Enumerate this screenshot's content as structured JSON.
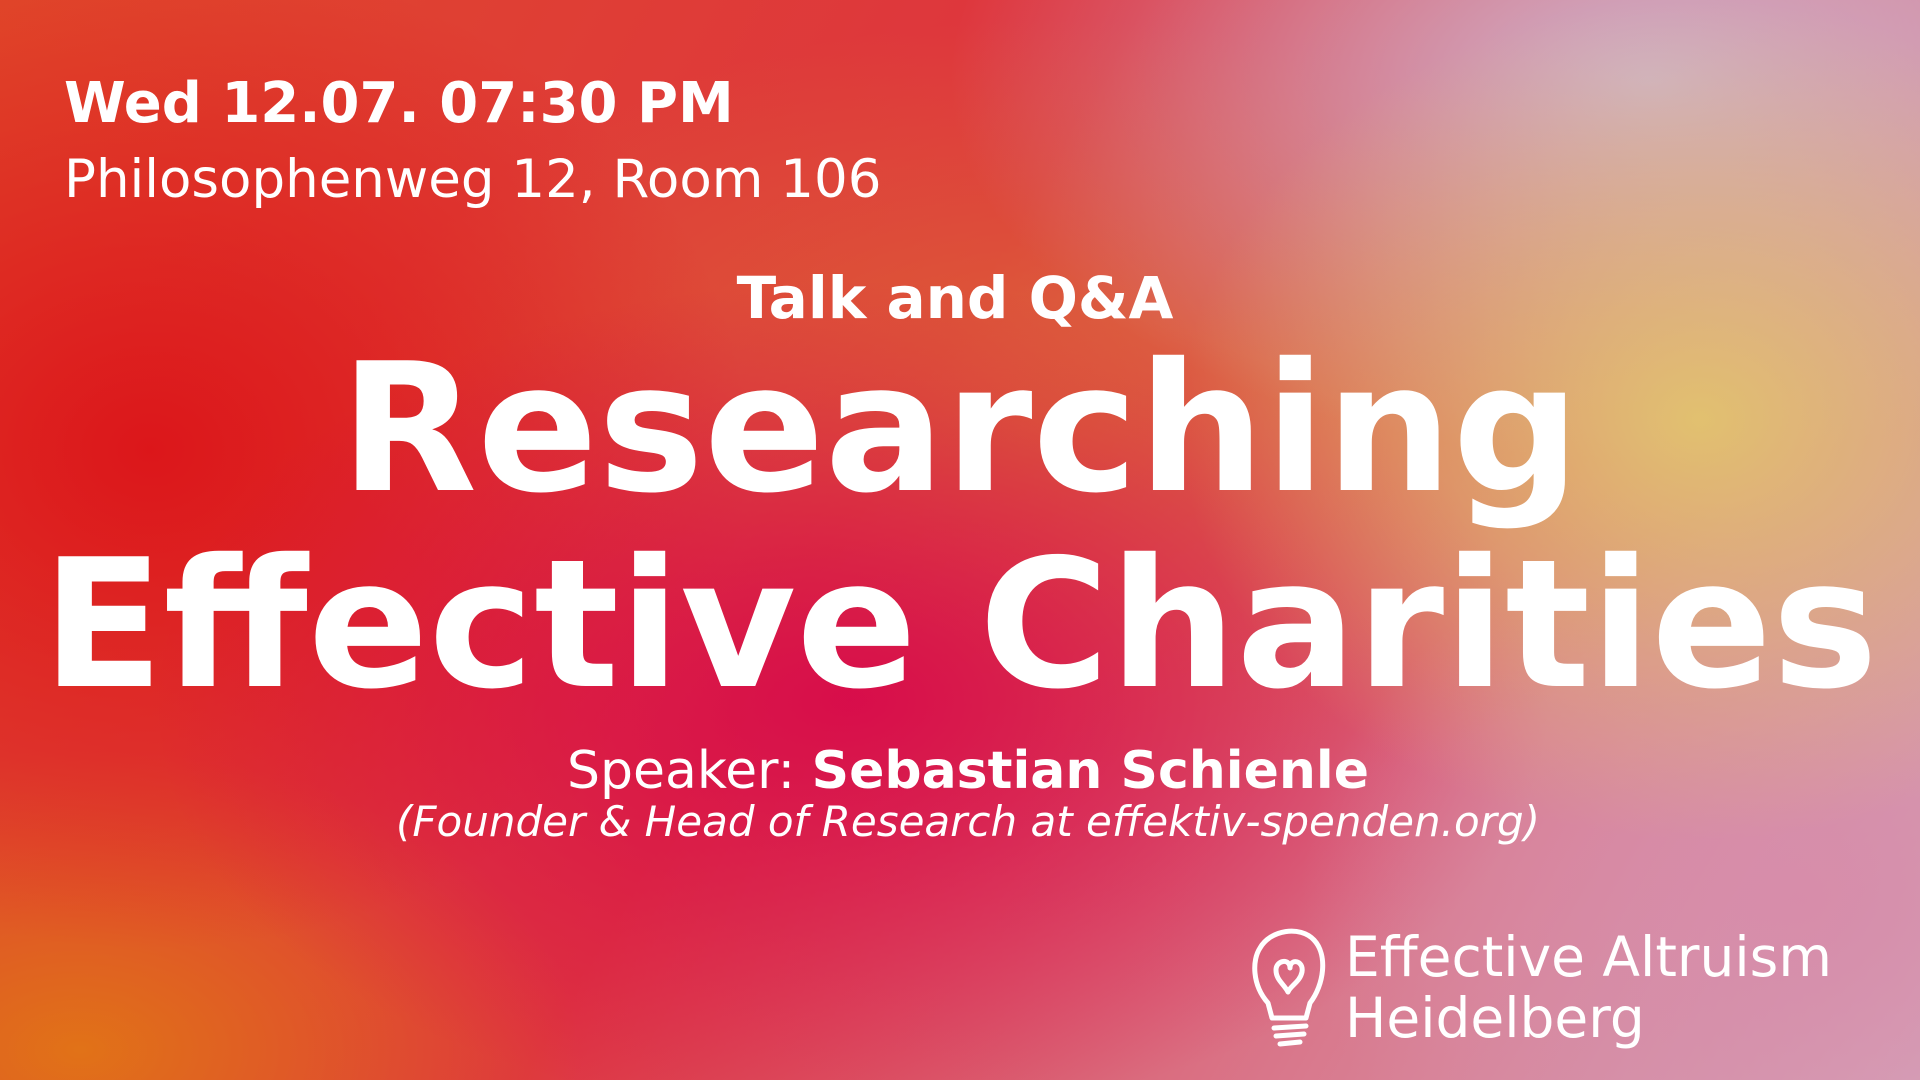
{
  "header": {
    "date_time": "Wed 12.07. 07:30 PM",
    "location": "Philosophenweg 12, Room 106"
  },
  "event": {
    "type": "Talk and Q&A",
    "title_lines": [
      "Researching",
      "Effective Charities"
    ]
  },
  "speaker": {
    "label": "Speaker:",
    "name": "Sebastian Schienle",
    "affiliation": "(Founder & Head of Research at effektiv-spenden.org)"
  },
  "logo": {
    "line1": "Effective Altruism",
    "line2": "Heidelberg"
  }
}
